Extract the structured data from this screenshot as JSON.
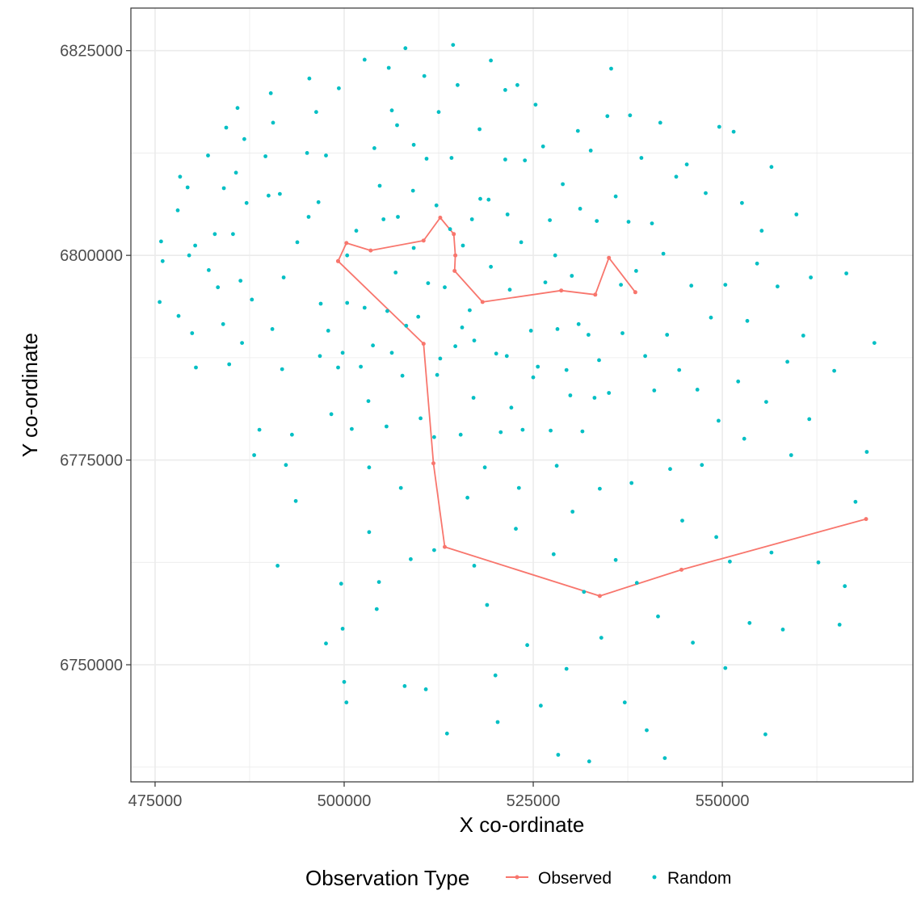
{
  "chart_data": {
    "type": "scatter",
    "xlabel": "X co-ordinate",
    "ylabel": "Y co-ordinate",
    "xlim": [
      471800,
      575200
    ],
    "ylim": [
      6735700,
      6830200
    ],
    "x_ticks": [
      475000,
      500000,
      525000,
      550000
    ],
    "y_ticks": [
      6750000,
      6775000,
      6800000,
      6825000
    ],
    "x_tick_labels": [
      "475000",
      "500000",
      "525000",
      "550000"
    ],
    "y_tick_labels": [
      "6750000",
      "6775000",
      "6800000",
      "6825000"
    ],
    "grid": true,
    "legend": {
      "title": "Observation Type",
      "position": "bottom",
      "entries": [
        "Observed",
        "Random"
      ]
    },
    "colors": {
      "observed": "#f8766d",
      "random": "#00bfc4",
      "grid": "#ebebeb",
      "panel_border": "#333333"
    },
    "series": [
      {
        "name": "Observed",
        "type": "line",
        "points": [
          [
            499200,
            6799300
          ],
          [
            500300,
            6801500
          ],
          [
            503500,
            6800600
          ],
          [
            510500,
            6801800
          ],
          [
            512700,
            6804600
          ],
          [
            514500,
            6802600
          ],
          [
            514700,
            6800000
          ],
          [
            514600,
            6798100
          ],
          [
            518300,
            6794300
          ],
          [
            528700,
            6795700
          ],
          [
            533200,
            6795200
          ],
          [
            535000,
            6799700
          ],
          [
            538500,
            6795500
          ]
        ],
        "points2": [
          [
            499200,
            6799300
          ],
          [
            510500,
            6789200
          ],
          [
            511800,
            6774600
          ],
          [
            513300,
            6764400
          ],
          [
            533800,
            6758400
          ],
          [
            544600,
            6761600
          ],
          [
            569000,
            6767800
          ]
        ]
      },
      {
        "name": "Random",
        "type": "scatter",
        "points": [
          [
            475800,
            6801700
          ],
          [
            476000,
            6799300
          ],
          [
            475600,
            6794300
          ],
          [
            478000,
            6805500
          ],
          [
            478300,
            6809600
          ],
          [
            479300,
            6808300
          ],
          [
            479500,
            6800000
          ],
          [
            478100,
            6792600
          ],
          [
            480300,
            6801200
          ],
          [
            479900,
            6790500
          ],
          [
            480400,
            6786300
          ],
          [
            482000,
            6812200
          ],
          [
            482100,
            6798200
          ],
          [
            482900,
            6802600
          ],
          [
            483300,
            6796100
          ],
          [
            484100,
            6808200
          ],
          [
            484400,
            6815600
          ],
          [
            484000,
            6791600
          ],
          [
            484800,
            6786700
          ],
          [
            485700,
            6810100
          ],
          [
            485300,
            6802600
          ],
          [
            485900,
            6818000
          ],
          [
            486800,
            6814200
          ],
          [
            487100,
            6806400
          ],
          [
            486300,
            6796900
          ],
          [
            486500,
            6789300
          ],
          [
            487800,
            6794600
          ],
          [
            488100,
            6775600
          ],
          [
            488800,
            6778700
          ],
          [
            489600,
            6812100
          ],
          [
            490300,
            6819800
          ],
          [
            490600,
            6816200
          ],
          [
            490000,
            6807300
          ],
          [
            490500,
            6791000
          ],
          [
            491500,
            6807500
          ],
          [
            492000,
            6797300
          ],
          [
            491800,
            6786100
          ],
          [
            491200,
            6762100
          ],
          [
            492300,
            6774400
          ],
          [
            493100,
            6778100
          ],
          [
            493600,
            6770000
          ],
          [
            493800,
            6801600
          ],
          [
            495100,
            6812500
          ],
          [
            495400,
            6821600
          ],
          [
            495300,
            6804700
          ],
          [
            496300,
            6817500
          ],
          [
            496600,
            6806500
          ],
          [
            496900,
            6794100
          ],
          [
            497600,
            6812200
          ],
          [
            497900,
            6790800
          ],
          [
            497600,
            6752600
          ],
          [
            498300,
            6780600
          ],
          [
            499200,
            6786300
          ],
          [
            499300,
            6820400
          ],
          [
            499800,
            6788100
          ],
          [
            499600,
            6759900
          ],
          [
            499800,
            6754400
          ],
          [
            500000,
            6747900
          ],
          [
            500300,
            6745400
          ],
          [
            500400,
            6794200
          ],
          [
            501000,
            6778800
          ],
          [
            501600,
            6803000
          ],
          [
            502700,
            6823900
          ],
          [
            502700,
            6793600
          ],
          [
            503200,
            6782200
          ],
          [
            503300,
            6774100
          ],
          [
            503800,
            6789000
          ],
          [
            504000,
            6813100
          ],
          [
            503300,
            6766200
          ],
          [
            504600,
            6760100
          ],
          [
            504300,
            6756800
          ],
          [
            505200,
            6804400
          ],
          [
            505700,
            6793200
          ],
          [
            505900,
            6822900
          ],
          [
            506300,
            6817700
          ],
          [
            506300,
            6788100
          ],
          [
            507000,
            6815900
          ],
          [
            507100,
            6804700
          ],
          [
            507700,
            6785300
          ],
          [
            507500,
            6771600
          ],
          [
            508100,
            6825300
          ],
          [
            508200,
            6791400
          ],
          [
            508800,
            6762900
          ],
          [
            508000,
            6747400
          ],
          [
            509200,
            6813500
          ],
          [
            509800,
            6792500
          ],
          [
            510100,
            6780100
          ],
          [
            510600,
            6821900
          ],
          [
            510900,
            6811800
          ],
          [
            510800,
            6747000
          ],
          [
            511100,
            6796600
          ],
          [
            511900,
            6764000
          ],
          [
            512200,
            6806100
          ],
          [
            512500,
            6817500
          ],
          [
            512700,
            6787400
          ],
          [
            513300,
            6796100
          ],
          [
            513600,
            6741600
          ],
          [
            514000,
            6803200
          ],
          [
            514200,
            6811900
          ],
          [
            514400,
            6825700
          ],
          [
            514700,
            6788900
          ],
          [
            515000,
            6820800
          ],
          [
            515400,
            6778100
          ],
          [
            515700,
            6801200
          ],
          [
            516300,
            6770400
          ],
          [
            516600,
            6793300
          ],
          [
            517100,
            6782600
          ],
          [
            517200,
            6762100
          ],
          [
            517900,
            6815400
          ],
          [
            518000,
            6806900
          ],
          [
            518600,
            6774100
          ],
          [
            518900,
            6757300
          ],
          [
            519400,
            6823800
          ],
          [
            519400,
            6798600
          ],
          [
            520100,
            6788000
          ],
          [
            520000,
            6748700
          ],
          [
            520700,
            6778400
          ],
          [
            520300,
            6743000
          ],
          [
            521300,
            6820200
          ],
          [
            521600,
            6805000
          ],
          [
            521900,
            6795800
          ],
          [
            522100,
            6781400
          ],
          [
            522700,
            6766600
          ],
          [
            522900,
            6820800
          ],
          [
            523100,
            6771600
          ],
          [
            523400,
            6801600
          ],
          [
            523900,
            6811600
          ],
          [
            524200,
            6752400
          ],
          [
            524700,
            6790800
          ],
          [
            525300,
            6818400
          ],
          [
            525600,
            6786400
          ],
          [
            526000,
            6745000
          ],
          [
            526300,
            6813300
          ],
          [
            527200,
            6804300
          ],
          [
            527300,
            6778600
          ],
          [
            527700,
            6763500
          ],
          [
            528200,
            6791000
          ],
          [
            528300,
            6739000
          ],
          [
            528900,
            6808700
          ],
          [
            529400,
            6786000
          ],
          [
            529400,
            6749500
          ],
          [
            530100,
            6797500
          ],
          [
            530200,
            6768700
          ],
          [
            530900,
            6815200
          ],
          [
            531200,
            6805700
          ],
          [
            531500,
            6778500
          ],
          [
            531700,
            6758900
          ],
          [
            532300,
            6790300
          ],
          [
            532400,
            6738200
          ],
          [
            532600,
            6812800
          ],
          [
            533400,
            6804200
          ],
          [
            533700,
            6787200
          ],
          [
            533800,
            6771500
          ],
          [
            534000,
            6753300
          ],
          [
            534800,
            6817000
          ],
          [
            535300,
            6822800
          ],
          [
            535000,
            6783200
          ],
          [
            535900,
            6807200
          ],
          [
            535900,
            6762800
          ],
          [
            536800,
            6790500
          ],
          [
            537100,
            6745400
          ],
          [
            537600,
            6804100
          ],
          [
            537800,
            6817100
          ],
          [
            538000,
            6772200
          ],
          [
            538600,
            6798100
          ],
          [
            538700,
            6760000
          ],
          [
            539300,
            6811900
          ],
          [
            539800,
            6787700
          ],
          [
            540000,
            6742000
          ],
          [
            540700,
            6803900
          ],
          [
            541000,
            6783500
          ],
          [
            541500,
            6755900
          ],
          [
            541800,
            6816200
          ],
          [
            542200,
            6800200
          ],
          [
            542400,
            6738600
          ],
          [
            542700,
            6790300
          ],
          [
            543100,
            6773900
          ],
          [
            543900,
            6809600
          ],
          [
            544300,
            6786000
          ],
          [
            544700,
            6767600
          ],
          [
            545300,
            6811100
          ],
          [
            545900,
            6796300
          ],
          [
            546100,
            6752700
          ],
          [
            546700,
            6783600
          ],
          [
            547300,
            6774400
          ],
          [
            547800,
            6807600
          ],
          [
            548500,
            6792400
          ],
          [
            549200,
            6765600
          ],
          [
            549600,
            6815700
          ],
          [
            549500,
            6779800
          ],
          [
            550400,
            6749600
          ],
          [
            550400,
            6796400
          ],
          [
            551000,
            6762600
          ],
          [
            551500,
            6815100
          ],
          [
            552100,
            6784600
          ],
          [
            552600,
            6806400
          ],
          [
            552900,
            6777600
          ],
          [
            553300,
            6792000
          ],
          [
            553600,
            6755100
          ],
          [
            554600,
            6799000
          ],
          [
            555200,
            6803000
          ],
          [
            555700,
            6741500
          ],
          [
            555800,
            6782100
          ],
          [
            556500,
            6810800
          ],
          [
            556500,
            6763700
          ],
          [
            557300,
            6796200
          ],
          [
            558000,
            6754300
          ],
          [
            558600,
            6787000
          ],
          [
            559100,
            6775600
          ],
          [
            559800,
            6805000
          ],
          [
            560700,
            6790200
          ],
          [
            561500,
            6780000
          ],
          [
            561700,
            6797300
          ],
          [
            562700,
            6762500
          ],
          [
            564800,
            6785900
          ],
          [
            565500,
            6754900
          ],
          [
            566400,
            6797800
          ],
          [
            566200,
            6759600
          ],
          [
            567600,
            6769900
          ],
          [
            569100,
            6776000
          ],
          [
            570100,
            6789300
          ],
          [
            504700,
            6808500
          ],
          [
            516900,
            6804400
          ],
          [
            521500,
            6787700
          ],
          [
            523600,
            6778700
          ],
          [
            526600,
            6796700
          ],
          [
            529900,
            6782900
          ],
          [
            509200,
            6800900
          ],
          [
            512300,
            6785400
          ],
          [
            515600,
            6791200
          ],
          [
            519100,
            6806800
          ],
          [
            531000,
            6791600
          ],
          [
            536600,
            6796400
          ],
          [
            502200,
            6786400
          ],
          [
            506800,
            6797900
          ],
          [
            521300,
            6811700
          ],
          [
            525000,
            6785100
          ],
          [
            527900,
            6800000
          ],
          [
            511900,
            6777800
          ],
          [
            517200,
            6789600
          ],
          [
            528100,
            6774300
          ],
          [
            533100,
            6782600
          ],
          [
            509100,
            6807900
          ],
          [
            496800,
            6787700
          ],
          [
            505600,
            6779100
          ],
          [
            500400,
            6800000
          ]
        ]
      }
    ]
  }
}
